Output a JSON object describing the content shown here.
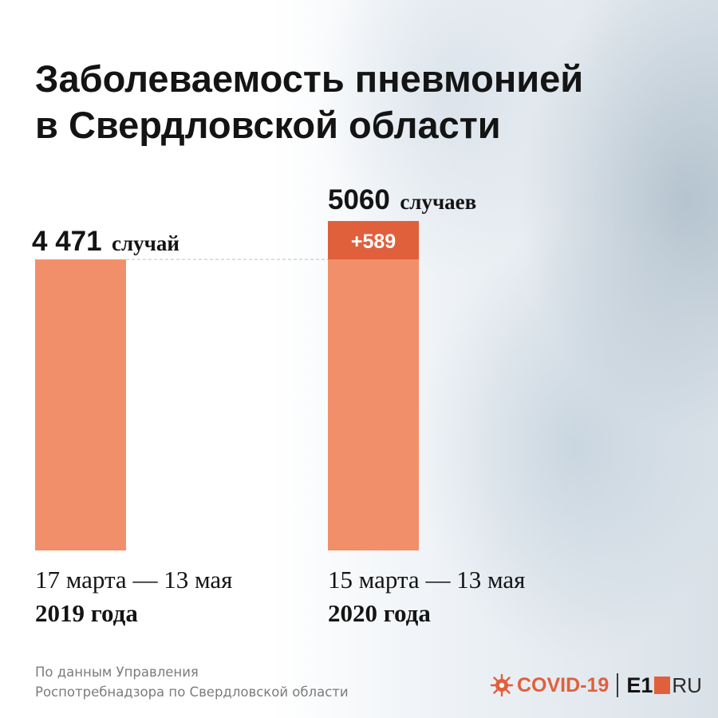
{
  "title": {
    "line1": "Заболеваемость пневмонией",
    "line2": "в Свердловской области"
  },
  "chart_data": {
    "type": "bar",
    "categories": [
      "17 марта — 13 мая 2019 года",
      "15 марта — 13 мая 2020 года"
    ],
    "values": [
      4471,
      5060
    ],
    "value_labels": [
      {
        "number": "4 471",
        "word": "случай"
      },
      {
        "number": "5060",
        "word": "случаев"
      }
    ],
    "difference": {
      "value": 589,
      "label": "+589"
    },
    "periods": [
      {
        "dates": "17 марта — 13 мая",
        "year": "2019 года"
      },
      {
        "dates": "15 марта — 13 мая",
        "year": "2020 года"
      }
    ],
    "colors": {
      "bar": "#f28f6b",
      "difference": "#e0603c",
      "dashed_line": "#c8c8c8"
    }
  },
  "source": {
    "line1": "По данным Управления",
    "line2": "Роспотребнадзора по Свердловской области"
  },
  "brand": {
    "covid": "COVID-19",
    "e1": "E1",
    "ru": "RU",
    "icon": "virus-icon"
  }
}
